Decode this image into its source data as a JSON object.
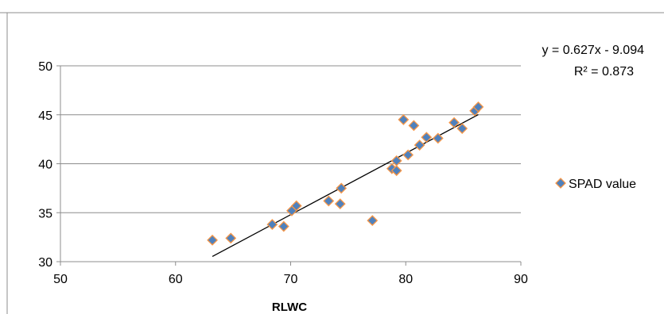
{
  "chart_data": {
    "type": "scatter",
    "title": "",
    "xlabel": "RLWC",
    "ylabel": "",
    "xlim": [
      50,
      90
    ],
    "ylim": [
      30,
      50
    ],
    "x_ticks": [
      "50",
      "60",
      "70",
      "80",
      "90"
    ],
    "y_ticks": [
      "30",
      "35",
      "40",
      "45",
      "50"
    ],
    "grid": "horizontal",
    "legend_position": "right",
    "series": [
      {
        "name": "SPAD value",
        "color": "#4f81bd",
        "marker_edge_color": "#f79646",
        "marker": "diamond",
        "points": [
          [
            63.2,
            32.2
          ],
          [
            64.8,
            32.4
          ],
          [
            68.4,
            33.8
          ],
          [
            69.4,
            33.6
          ],
          [
            70.1,
            35.2
          ],
          [
            70.5,
            35.7
          ],
          [
            73.3,
            36.2
          ],
          [
            74.3,
            35.9
          ],
          [
            74.4,
            37.5
          ],
          [
            77.1,
            34.2
          ],
          [
            78.8,
            39.5
          ],
          [
            79.2,
            39.3
          ],
          [
            79.2,
            40.3
          ],
          [
            79.8,
            44.5
          ],
          [
            80.2,
            40.9
          ],
          [
            80.7,
            43.9
          ],
          [
            81.2,
            41.9
          ],
          [
            81.8,
            42.7
          ],
          [
            82.8,
            42.6
          ],
          [
            84.2,
            44.2
          ],
          [
            84.9,
            43.6
          ],
          [
            86.0,
            45.4
          ],
          [
            86.3,
            45.8
          ]
        ]
      }
    ],
    "trendline": {
      "type": "linear",
      "slope": 0.627,
      "intercept": -9.094,
      "x_range": [
        63.2,
        86.3
      ],
      "color": "#000000",
      "equation": "y = 0.627x - 9.094",
      "r_squared": "R² = 0.873"
    }
  }
}
